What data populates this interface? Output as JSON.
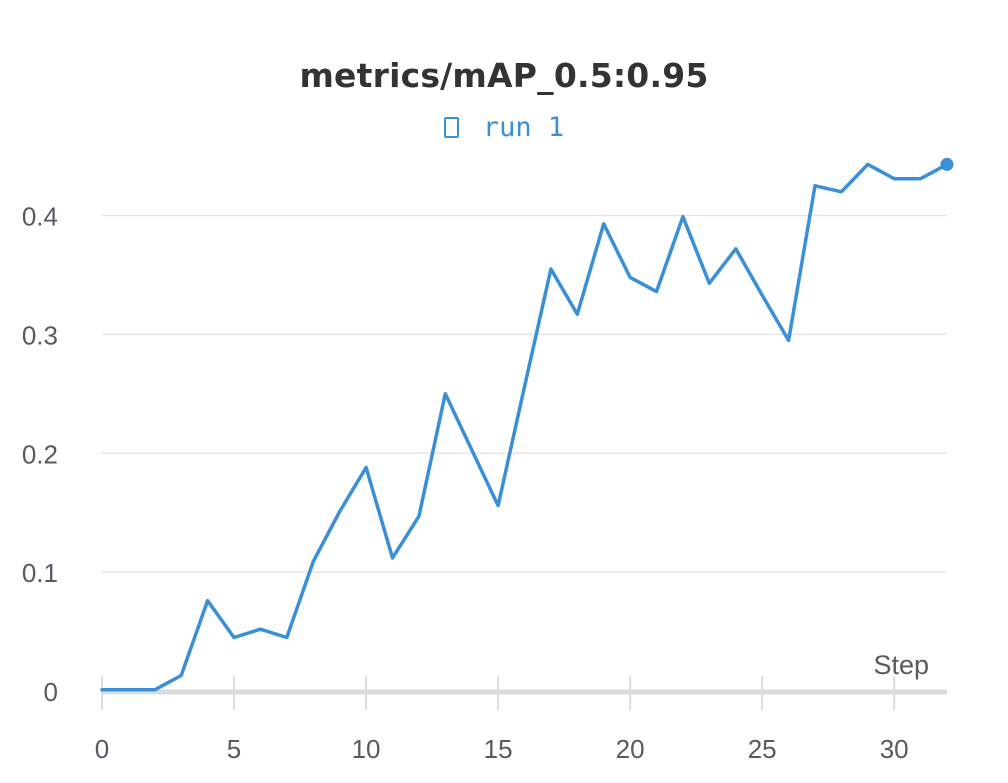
{
  "chart_data": {
    "type": "line",
    "title": "metrics/mAP_0.5:0.95",
    "xlabel": "Step",
    "ylabel": "",
    "xlim": [
      0,
      32
    ],
    "ylim": [
      0,
      0.44
    ],
    "x_ticks": [
      "0",
      "5",
      "10",
      "15",
      "20",
      "25",
      "30"
    ],
    "y_ticks": [
      "0",
      "0.1",
      "0.2",
      "0.3",
      "0.4"
    ],
    "x_tick_values": [
      0,
      5,
      10,
      15,
      20,
      25,
      30
    ],
    "y_tick_values": [
      0,
      0.1,
      0.2,
      0.3,
      0.4
    ],
    "grid": true,
    "legend_position": "top-center",
    "series": [
      {
        "name": "run 1",
        "color": "#3a8fd6",
        "x": [
          0,
          1,
          2,
          3,
          4,
          5,
          6,
          7,
          8,
          9,
          10,
          11,
          12,
          13,
          14,
          15,
          16,
          17,
          18,
          19,
          20,
          21,
          22,
          23,
          24,
          25,
          26,
          27,
          28,
          29,
          30,
          31,
          32
        ],
        "y": [
          0.001,
          0.001,
          0.001,
          0.013,
          0.076,
          0.045,
          0.052,
          0.045,
          0.109,
          0.151,
          0.188,
          0.112,
          0.147,
          0.25,
          0.203,
          0.156,
          0.256,
          0.355,
          0.317,
          0.393,
          0.348,
          0.336,
          0.399,
          0.343,
          0.372,
          0.333,
          0.295,
          0.425,
          0.42,
          0.443,
          0.431,
          0.431,
          0.443
        ]
      }
    ]
  }
}
